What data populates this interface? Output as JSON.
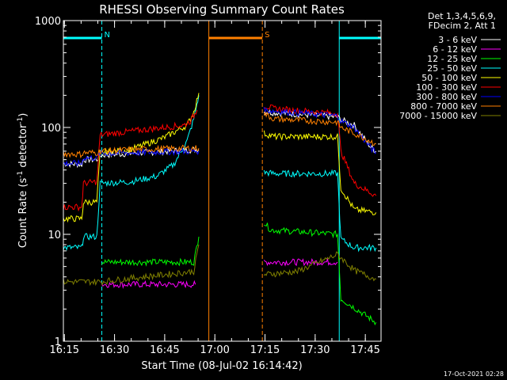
{
  "chart_data": {
    "type": "line",
    "title": "RHESSI Observing Summary Count Rates",
    "xlabel": "Start Time (08-Jul-02 16:14:42)",
    "ylabel_main": "Count Rate (s",
    "ylabel_sup1": "-1",
    "ylabel_mid": " detector",
    "ylabel_sup2": "-1",
    "ylabel_end": ")",
    "y_scale": "log",
    "ylim": [
      1,
      1000
    ],
    "xlim_minutes": [
      0,
      95
    ],
    "x_ticks": [
      {
        "label": "16:15",
        "min": 0.3
      },
      {
        "label": "16:30",
        "min": 15.3
      },
      {
        "label": "16:45",
        "min": 30.3
      },
      {
        "label": "17:00",
        "min": 45.3
      },
      {
        "label": "17:15",
        "min": 60.3
      },
      {
        "label": "17:30",
        "min": 75.3
      },
      {
        "label": "17:45",
        "min": 90.3
      }
    ],
    "y_ticks": [
      {
        "label": "1",
        "value": 1
      },
      {
        "label": "10",
        "value": 10
      },
      {
        "label": "100",
        "value": 100
      },
      {
        "label": "1000",
        "value": 1000
      }
    ],
    "legend_header": [
      "Det 1,3,4,5,6,9,",
      "FDecim 2, Att 1"
    ],
    "legend_position": "right",
    "footer_date": "17-Oct-2021 02:28",
    "markers": [
      {
        "label": "N",
        "start_min": 0,
        "end_min": 11.5,
        "color": "#00ffff"
      },
      {
        "label": "S",
        "start_min": 43.5,
        "end_min": 59.5,
        "color": "#ff8000"
      },
      {
        "label": "",
        "start_min": 82.5,
        "end_min": 95,
        "color": "#00ffff"
      }
    ],
    "series": [
      {
        "name": "3 - 6 keV",
        "color": "#ffffff",
        "segments": [
          [
            [
              0,
              46
            ],
            [
              5.5,
              45
            ],
            [
              6,
              50
            ],
            [
              10,
              50
            ],
            [
              11,
              55
            ],
            [
              39,
              62
            ],
            [
              40.5,
              62
            ]
          ],
          [
            [
              60,
              140
            ],
            [
              82,
              125
            ],
            [
              83,
              118
            ],
            [
              87,
              105
            ],
            [
              92,
              65
            ],
            [
              93.5,
              60
            ]
          ]
        ]
      },
      {
        "name": "6 - 12 keV",
        "color": "#ff00ff",
        "segments": [
          [
            [
              11.5,
              3.4
            ],
            [
              39.5,
              3.4
            ]
          ],
          [
            [
              60,
              5.5
            ],
            [
              82,
              5.5
            ]
          ]
        ]
      },
      {
        "name": "12 - 25 keV",
        "color": "#00ff00",
        "segments": [
          [
            [
              11.5,
              5.5
            ],
            [
              39,
              5.5
            ],
            [
              40.5,
              9.5
            ]
          ],
          [
            [
              60,
              13
            ],
            [
              62,
              11
            ],
            [
              82,
              10
            ],
            [
              83,
              2.5
            ],
            [
              93.5,
              1.5
            ]
          ]
        ]
      },
      {
        "name": "25 - 50 keV",
        "color": "#00ffff",
        "segments": [
          [
            [
              0,
              7.5
            ],
            [
              5.5,
              7.5
            ],
            [
              6,
              9.5
            ],
            [
              10,
              9.5
            ],
            [
              11,
              30
            ],
            [
              20,
              31
            ],
            [
              28,
              35
            ],
            [
              33,
              45
            ],
            [
              37,
              75
            ],
            [
              39,
              120
            ],
            [
              40.5,
              200
            ]
          ],
          [
            [
              60,
              38
            ],
            [
              63,
              37
            ],
            [
              82,
              37
            ],
            [
              83,
              9
            ],
            [
              87,
              7.5
            ],
            [
              93.5,
              7.5
            ]
          ]
        ]
      },
      {
        "name": "50 - 100 keV",
        "color": "#ffff00",
        "segments": [
          [
            [
              0,
              14
            ],
            [
              5.5,
              14
            ],
            [
              6,
              20
            ],
            [
              10,
              20
            ],
            [
              11,
              58
            ],
            [
              20,
              62
            ],
            [
              30,
              80
            ],
            [
              37,
              105
            ],
            [
              39,
              140
            ],
            [
              40.5,
              210
            ]
          ],
          [
            [
              60,
              88
            ],
            [
              63,
              82
            ],
            [
              82,
              82
            ],
            [
              83,
              27
            ],
            [
              87,
              17
            ],
            [
              93.5,
              16
            ]
          ]
        ]
      },
      {
        "name": "100 - 300 keV",
        "color": "#ff0000",
        "segments": [
          [
            [
              0,
              18
            ],
            [
              5.5,
              18
            ],
            [
              6,
              30
            ],
            [
              10,
              31
            ],
            [
              11,
              85
            ],
            [
              20,
              92
            ],
            [
              30,
              100
            ],
            [
              36,
              105
            ],
            [
              38,
              115
            ],
            [
              40,
              145
            ]
          ],
          [
            [
              60,
              160
            ],
            [
              63,
              150
            ],
            [
              82,
              135
            ],
            [
              83,
              60
            ],
            [
              87,
              30
            ],
            [
              93.5,
              23
            ]
          ]
        ]
      },
      {
        "name": "300 - 800 keV",
        "color": "#0000ff",
        "segments": [
          [
            [
              0,
              46
            ],
            [
              5.5,
              46
            ],
            [
              6,
              52
            ],
            [
              10,
              52
            ],
            [
              11,
              57
            ],
            [
              39,
              60
            ],
            [
              40.5,
              60
            ]
          ],
          [
            [
              60,
              145
            ],
            [
              82,
              128
            ],
            [
              83,
              115
            ],
            [
              87,
              100
            ],
            [
              92,
              64
            ],
            [
              93.5,
              58
            ]
          ]
        ]
      },
      {
        "name": "800 - 7000 keV",
        "color": "#ff8000",
        "segments": [
          [
            [
              0,
              57
            ],
            [
              5.5,
              56
            ],
            [
              6,
              58
            ],
            [
              10,
              58
            ],
            [
              11,
              60
            ],
            [
              20,
              62
            ],
            [
              39,
              64
            ],
            [
              40.5,
              64
            ]
          ],
          [
            [
              60,
              135
            ],
            [
              63,
              120
            ],
            [
              82,
              112
            ],
            [
              83,
              100
            ],
            [
              90,
              80
            ],
            [
              93.5,
              70
            ]
          ]
        ]
      },
      {
        "name": "7000 - 15000 keV",
        "color": "#808000",
        "segments": [
          [
            [
              0,
              3.6
            ],
            [
              11,
              3.6
            ],
            [
              39,
              4.5
            ],
            [
              40.5,
              8
            ]
          ],
          [
            [
              60,
              4.2
            ],
            [
              70,
              4.5
            ],
            [
              82,
              6.5
            ],
            [
              87,
              4.6
            ],
            [
              93.5,
              3.8
            ]
          ]
        ]
      }
    ]
  }
}
